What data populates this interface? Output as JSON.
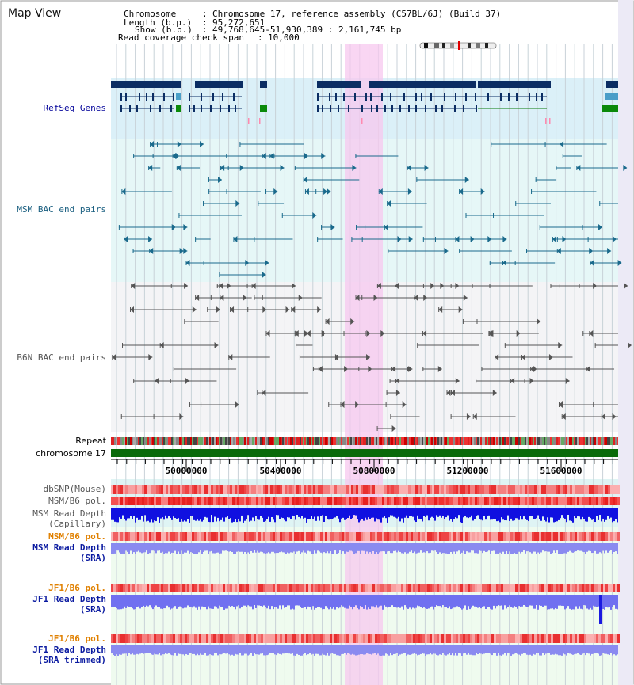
{
  "page": {
    "title": "Map View"
  },
  "info": {
    "chromosome_key": "Chromosome",
    "chromosome_value": "Chromosome 17, reference assembly (C57BL/6J) (Build 37)",
    "length_key": "Length (b.p.)",
    "length_value": "95,272,651",
    "show_key": "Show (b.p.)",
    "show_value": "49,768,645-51,930,389 : 2,161,745 bp",
    "coverage_key": "Read coverage check span",
    "coverage_value": "10,000"
  },
  "tracks": {
    "refseq": "RefSeq Genes",
    "msm_bac": "MSM BAC end pairs",
    "b6n_bac": "B6N BAC end pairs",
    "repeat": "Repeat",
    "chromosome": "chromosome 17",
    "dbsnp": "dbSNP(Mouse)",
    "msm_pol": "MSM/B6 pol.",
    "msm_depth_cap_1": "MSM Read Depth",
    "msm_depth_cap_2": "(Capillary)",
    "msm_pol_sra": "MSM/B6 pol.",
    "msm_depth_sra_1": "MSM Read Depth",
    "msm_depth_sra_2": "(SRA)",
    "jf1_pol": "JF1/B6 pol.",
    "jf1_depth_1": "JF1 Read Depth",
    "jf1_depth_2": "(SRA)",
    "jf1_pol_trim": "JF1/B6 pol.",
    "jf1_trim_1": "JF1 Read Depth",
    "jf1_trim_2": "(SRA trimmed)"
  },
  "axis": {
    "ticks": [
      "50000000",
      "50400000",
      "50800000",
      "51200000",
      "51600000"
    ]
  },
  "colors": {
    "refseq_label": "#000099",
    "msm_label": "#1a5f80",
    "b6n_label": "#555555",
    "pol_orange": "#e08000",
    "sra_blue": "#0a1aa0",
    "highlight": "#f7c8ef"
  }
}
